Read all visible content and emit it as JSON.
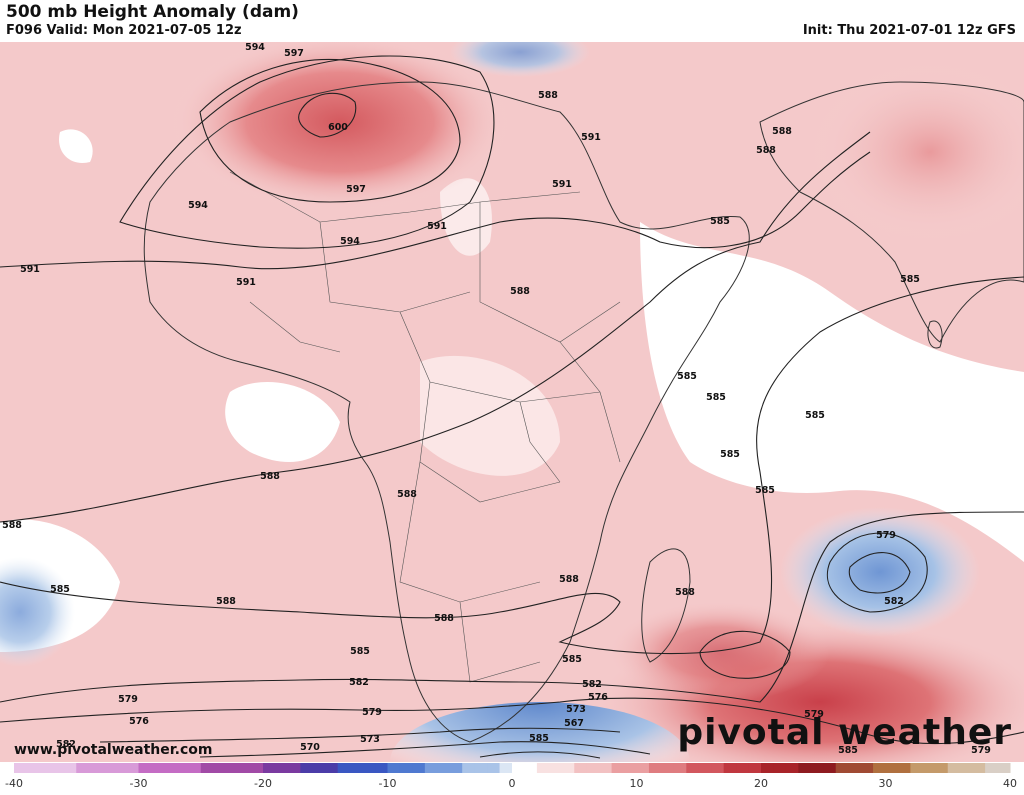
{
  "header": {
    "title": "500 mb Height Anomaly (dam)",
    "valid": "F096 Valid: Mon 2021-07-05 12z",
    "init": "Init: Thu 2021-07-01 12z GFS"
  },
  "footer": {
    "url": "www.pivotalweather.com",
    "logo": "pivotal weather"
  },
  "colors": {
    "warm_light": "#f6d3d3",
    "warm_mid": "#eea9aa",
    "warm_strong": "#e07d80",
    "warm_deep": "#d45a5f",
    "cool_light": "#c9d9ee",
    "cool_mid": "#96b7e0",
    "cool_strong": "#6f96d4",
    "land_line": "#333333",
    "contour": "#222222"
  },
  "colorbar": {
    "ticks": [
      "-40",
      "-30",
      "-20",
      "-10",
      "0",
      "10",
      "20",
      "30",
      "40"
    ],
    "min": -40,
    "max": 40
  },
  "contour_labels": [
    "594",
    "597",
    "600",
    "597",
    "594",
    "591",
    "594",
    "591",
    "591",
    "588",
    "591",
    "591",
    "588",
    "588",
    "588",
    "585",
    "585",
    "585",
    "585",
    "585",
    "585",
    "585",
    "588",
    "588",
    "588",
    "588",
    "588",
    "588",
    "585",
    "585",
    "588",
    "585",
    "582",
    "582",
    "579",
    "579",
    "576",
    "576",
    "573",
    "573",
    "570",
    "567",
    "585",
    "582",
    "579",
    "582",
    "579",
    "585",
    "579"
  ]
}
